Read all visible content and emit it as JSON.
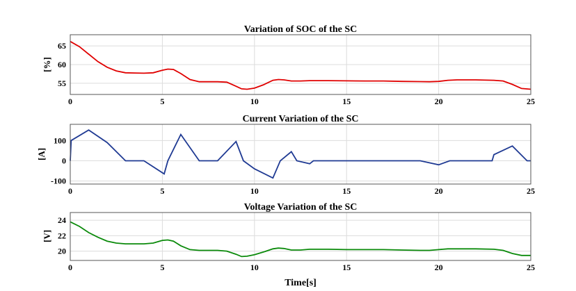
{
  "xlabel": "Time[s]",
  "chart_data": [
    {
      "type": "line",
      "title": "Variation of SOC of the SC",
      "ylabel": "[%]",
      "xlim": [
        0,
        25
      ],
      "ylim": [
        52,
        68
      ],
      "xticks": [
        0,
        5,
        10,
        15,
        20,
        25
      ],
      "yticks": [
        55,
        60,
        65
      ],
      "grid": true,
      "series": [
        {
          "color": "#e00000",
          "x": [
            0,
            0.5,
            1,
            1.5,
            2,
            2.5,
            3,
            3.5,
            4,
            4.5,
            5,
            5.3,
            5.6,
            6,
            6.5,
            7,
            7.5,
            8,
            8.5,
            9,
            9.3,
            9.6,
            10,
            10.5,
            11,
            11.3,
            11.6,
            12,
            12.5,
            13,
            14,
            15,
            16,
            17,
            18,
            19,
            19.5,
            20,
            20.5,
            21,
            22,
            23,
            23.5,
            24,
            24.5,
            25
          ],
          "y": [
            66.2,
            64.8,
            62.8,
            60.8,
            59.3,
            58.3,
            57.8,
            57.75,
            57.7,
            57.8,
            58.5,
            58.8,
            58.7,
            57.6,
            56.0,
            55.4,
            55.4,
            55.4,
            55.3,
            54.2,
            53.5,
            53.4,
            53.7,
            54.6,
            55.8,
            56.0,
            55.9,
            55.6,
            55.6,
            55.7,
            55.7,
            55.65,
            55.6,
            55.6,
            55.5,
            55.45,
            55.4,
            55.5,
            55.8,
            55.9,
            55.9,
            55.8,
            55.6,
            54.7,
            53.6,
            53.4
          ]
        }
      ]
    },
    {
      "type": "line",
      "title": "Current Variation of the SC",
      "ylabel": "[A]",
      "xlim": [
        0,
        25
      ],
      "ylim": [
        -115,
        180
      ],
      "xticks": [
        0,
        5,
        10,
        15,
        20,
        25
      ],
      "yticks": [
        -100,
        0,
        100
      ],
      "grid": true,
      "series": [
        {
          "color": "#1f3a93",
          "x": [
            0,
            0.05,
            1,
            2,
            3,
            4,
            5.1,
            5.3,
            6,
            7,
            8,
            9,
            9.4,
            10,
            11,
            11.4,
            12,
            12.3,
            13,
            13.2,
            19,
            20,
            20.6,
            22.9,
            23,
            24,
            24.8,
            25
          ],
          "y": [
            0,
            100,
            152,
            90,
            0,
            0,
            -65,
            0,
            130,
            0,
            0,
            95,
            0,
            -40,
            -85,
            0,
            45,
            0,
            -15,
            0,
            0,
            -20,
            0,
            0,
            30,
            73,
            0,
            0
          ]
        }
      ]
    },
    {
      "type": "line",
      "title": "Voltage Variation of the SC",
      "ylabel": "[V]",
      "xlim": [
        0,
        25
      ],
      "ylim": [
        18.8,
        25
      ],
      "xticks": [
        0,
        5,
        10,
        15,
        20,
        25
      ],
      "yticks": [
        20,
        22,
        24
      ],
      "grid": true,
      "series": [
        {
          "color": "#0a8a0a",
          "x": [
            0,
            0.5,
            1,
            1.5,
            2,
            2.5,
            3,
            3.5,
            4,
            4.5,
            5,
            5.3,
            5.6,
            6,
            6.5,
            7,
            7.5,
            8,
            8.5,
            9,
            9.3,
            9.6,
            10,
            10.5,
            11,
            11.3,
            11.6,
            12,
            12.5,
            13,
            14,
            15,
            16,
            17,
            18,
            19,
            19.5,
            20,
            20.5,
            21,
            22,
            23,
            23.5,
            24,
            24.5,
            25
          ],
          "y": [
            23.8,
            23.2,
            22.4,
            21.8,
            21.3,
            21.05,
            20.95,
            20.95,
            20.95,
            21.05,
            21.4,
            21.45,
            21.3,
            20.7,
            20.2,
            20.1,
            20.1,
            20.1,
            20.0,
            19.6,
            19.3,
            19.35,
            19.55,
            19.9,
            20.3,
            20.4,
            20.35,
            20.15,
            20.15,
            20.25,
            20.25,
            20.2,
            20.2,
            20.2,
            20.15,
            20.1,
            20.1,
            20.2,
            20.3,
            20.3,
            20.3,
            20.25,
            20.1,
            19.7,
            19.45,
            19.45
          ]
        }
      ]
    }
  ]
}
